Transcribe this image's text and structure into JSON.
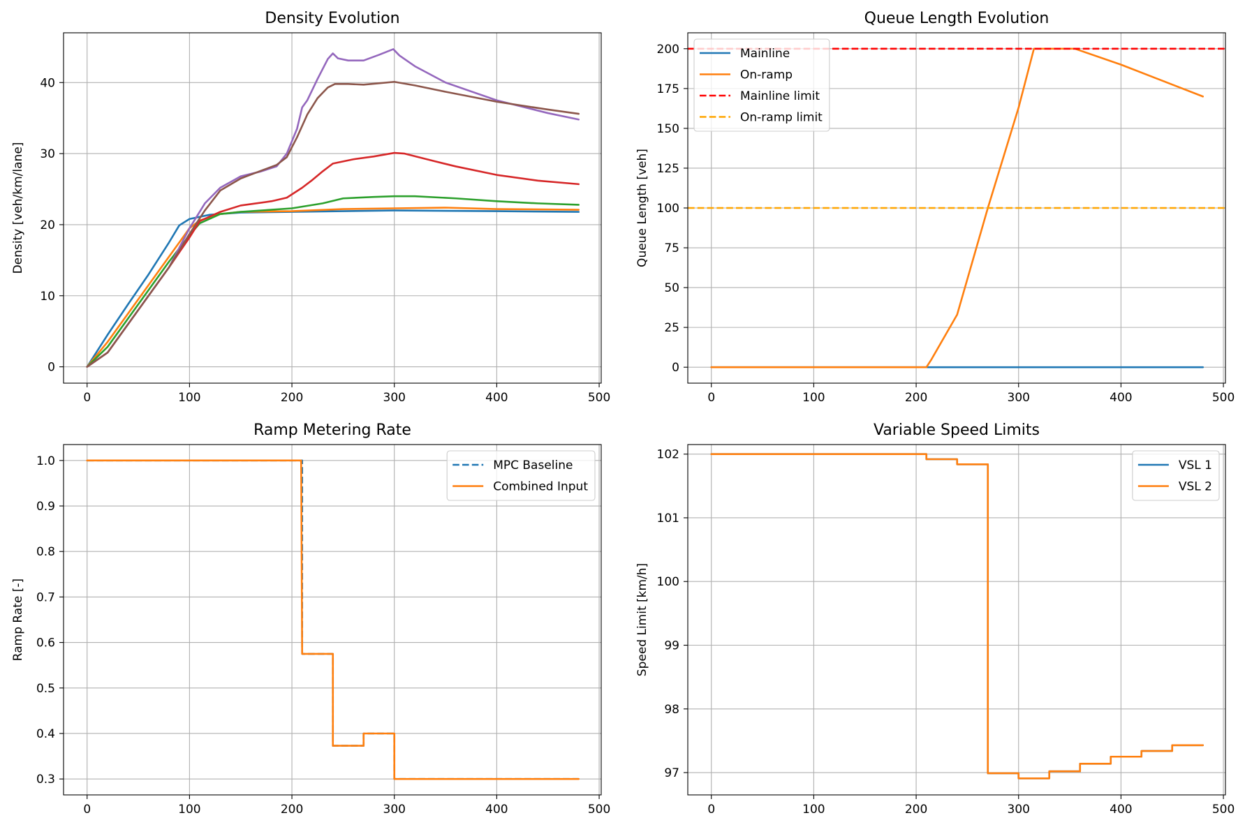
{
  "chart_data": [
    {
      "type": "line",
      "title": "Density Evolution",
      "xlabel": "",
      "ylabel": "Density [veh/km/lane]",
      "xlim": [
        -23,
        502
      ],
      "ylim": [
        -2.3,
        47
      ],
      "xticks": [
        0,
        100,
        200,
        300,
        400,
        500
      ],
      "yticks": [
        0,
        10,
        20,
        30,
        40
      ],
      "grid": true,
      "legend": null,
      "series": [
        {
          "color": "#1f77b4",
          "x": [
            0,
            20,
            40,
            60,
            80,
            90,
            100,
            120,
            150,
            200,
            300,
            400,
            480
          ],
          "y": [
            0,
            4.5,
            8.8,
            13,
            17.5,
            19.9,
            20.8,
            21.4,
            21.7,
            21.8,
            22.0,
            21.9,
            21.8
          ]
        },
        {
          "color": "#ff7f0e",
          "x": [
            0,
            20,
            40,
            60,
            80,
            100,
            110,
            130,
            150,
            200,
            250,
            300,
            350,
            400,
            480
          ],
          "y": [
            0,
            3.5,
            7.5,
            11.5,
            15.5,
            19.5,
            20.6,
            21.5,
            21.8,
            21.9,
            22.2,
            22.3,
            22.4,
            22.2,
            22.1
          ]
        },
        {
          "color": "#2ca02c",
          "x": [
            0,
            20,
            40,
            60,
            80,
            100,
            110,
            130,
            150,
            200,
            230,
            250,
            280,
            300,
            320,
            360,
            400,
            440,
            480
          ],
          "y": [
            0,
            2.8,
            6.8,
            10.8,
            14.8,
            18.5,
            20.2,
            21.5,
            21.8,
            22.3,
            23.0,
            23.7,
            23.9,
            24.0,
            24.0,
            23.7,
            23.3,
            23.0,
            22.8
          ]
        },
        {
          "color": "#d62728",
          "x": [
            0,
            20,
            40,
            60,
            80,
            100,
            110,
            130,
            150,
            180,
            195,
            210,
            220,
            230,
            240,
            260,
            280,
            300,
            310,
            340,
            360,
            400,
            440,
            480
          ],
          "y": [
            0,
            2,
            6,
            10,
            14,
            18.2,
            20.5,
            21.8,
            22.7,
            23.3,
            23.8,
            25.2,
            26.3,
            27.5,
            28.6,
            29.2,
            29.6,
            30.1,
            30.0,
            28.9,
            28.2,
            27.0,
            26.2,
            25.7
          ]
        },
        {
          "color": "#9467bd",
          "x": [
            0,
            20,
            40,
            60,
            80,
            100,
            115,
            130,
            150,
            170,
            185,
            195,
            205,
            210,
            215,
            225,
            235,
            240,
            245,
            255,
            270,
            285,
            299,
            305,
            320,
            350,
            400,
            450,
            480
          ],
          "y": [
            0,
            2,
            6,
            10,
            14,
            19.5,
            23,
            25.2,
            26.8,
            27.5,
            28.2,
            30,
            33.5,
            36.5,
            37.5,
            40.5,
            43.3,
            44.1,
            43.4,
            43.1,
            43.1,
            43.9,
            44.7,
            43.8,
            42.3,
            40.0,
            37.5,
            35.7,
            34.8
          ]
        },
        {
          "color": "#8c564b",
          "x": [
            0,
            20,
            40,
            60,
            80,
            100,
            115,
            130,
            150,
            170,
            185,
            195,
            205,
            215,
            225,
            235,
            242,
            255,
            270,
            285,
            300,
            320,
            350,
            400,
            450,
            480
          ],
          "y": [
            0,
            2,
            6,
            10,
            14,
            18.7,
            22,
            24.8,
            26.5,
            27.6,
            28.4,
            29.5,
            32.3,
            35.5,
            37.8,
            39.3,
            39.8,
            39.8,
            39.7,
            39.9,
            40.1,
            39.6,
            38.7,
            37.3,
            36.2,
            35.6
          ]
        }
      ]
    },
    {
      "type": "line",
      "title": "Queue Length Evolution",
      "xlabel": "",
      "ylabel": "Queue Length [veh]",
      "xlim": [
        -23,
        502
      ],
      "ylim": [
        -10,
        210
      ],
      "xticks": [
        0,
        100,
        200,
        300,
        400,
        500
      ],
      "yticks": [
        0,
        25,
        50,
        75,
        100,
        125,
        150,
        175,
        200
      ],
      "grid": true,
      "legend": "top-left",
      "series": [
        {
          "name": "Mainline",
          "color": "#1f77b4",
          "dash": false,
          "x": [
            0,
            480
          ],
          "y": [
            0,
            0
          ]
        },
        {
          "name": "On-ramp",
          "color": "#ff7f0e",
          "dash": false,
          "x": [
            0,
            210,
            215,
            240,
            270,
            300,
            315,
            355,
            400,
            440,
            480
          ],
          "y": [
            0,
            0,
            5,
            33,
            100,
            163,
            200,
            200,
            190,
            180,
            170
          ]
        },
        {
          "name": "Mainline limit",
          "color": "#ff0000",
          "dash": true,
          "x": [
            -23,
            502
          ],
          "y": [
            200,
            200
          ]
        },
        {
          "name": "On-ramp limit",
          "color": "#ffa500",
          "dash": true,
          "x": [
            -23,
            502
          ],
          "y": [
            100,
            100
          ]
        }
      ]
    },
    {
      "type": "line",
      "title": "Ramp Metering Rate",
      "xlabel": "",
      "ylabel": "Ramp Rate [-]",
      "xlim": [
        -23,
        502
      ],
      "ylim": [
        0.265,
        1.035
      ],
      "xticks": [
        0,
        100,
        200,
        300,
        400,
        500
      ],
      "yticks": [
        0.3,
        0.4,
        0.5,
        0.6,
        0.7,
        0.8,
        0.9,
        1.0
      ],
      "yticklabels": [
        "0.3",
        "0.4",
        "0.5",
        "0.6",
        "0.7",
        "0.8",
        "0.9",
        "1.0"
      ],
      "grid": true,
      "legend": "top-right",
      "series": [
        {
          "name": "MPC Baseline",
          "color": "#1f77b4",
          "dash": true,
          "x": [
            0,
            210,
            210,
            240,
            240,
            270,
            270,
            300,
            300,
            480
          ],
          "y": [
            1.0,
            1.0,
            0.575,
            0.575,
            0.373,
            0.373,
            0.4,
            0.4,
            0.3,
            0.3
          ]
        },
        {
          "name": "Combined Input",
          "color": "#ff7f0e",
          "dash": false,
          "x": [
            0,
            209,
            210,
            240,
            240,
            270,
            270,
            300,
            300,
            480
          ],
          "y": [
            1.0,
            1.0,
            0.575,
            0.575,
            0.373,
            0.373,
            0.4,
            0.4,
            0.3,
            0.3
          ]
        }
      ]
    },
    {
      "type": "line",
      "title": "Variable Speed Limits",
      "xlabel": "",
      "ylabel": "Speed Limit [km/h]",
      "xlim": [
        -23,
        502
      ],
      "ylim": [
        96.65,
        102.15
      ],
      "xticks": [
        0,
        100,
        200,
        300,
        400,
        500
      ],
      "yticks": [
        97,
        98,
        99,
        100,
        101,
        102
      ],
      "grid": true,
      "legend": "top-right",
      "series": [
        {
          "name": "VSL 1",
          "color": "#1f77b4",
          "dash": false,
          "x": [
            0,
            210,
            210,
            240,
            240,
            270,
            270,
            300,
            300,
            330,
            330,
            360,
            360,
            390,
            390,
            420,
            420,
            450,
            450,
            480
          ],
          "y": [
            102,
            102,
            101.92,
            101.92,
            101.84,
            101.84,
            96.99,
            96.99,
            96.91,
            96.91,
            97.02,
            97.02,
            97.14,
            97.14,
            97.25,
            97.25,
            97.34,
            97.34,
            97.43,
            97.43
          ]
        },
        {
          "name": "VSL 2",
          "color": "#ff7f0e",
          "dash": false,
          "x": [
            0,
            210,
            210,
            240,
            240,
            270,
            270,
            300,
            300,
            330,
            330,
            360,
            360,
            390,
            390,
            420,
            420,
            450,
            450,
            480
          ],
          "y": [
            102,
            102,
            101.92,
            101.92,
            101.84,
            101.84,
            96.99,
            96.99,
            96.91,
            96.91,
            97.02,
            97.02,
            97.14,
            97.14,
            97.25,
            97.25,
            97.34,
            97.34,
            97.43,
            97.43
          ]
        }
      ]
    }
  ]
}
